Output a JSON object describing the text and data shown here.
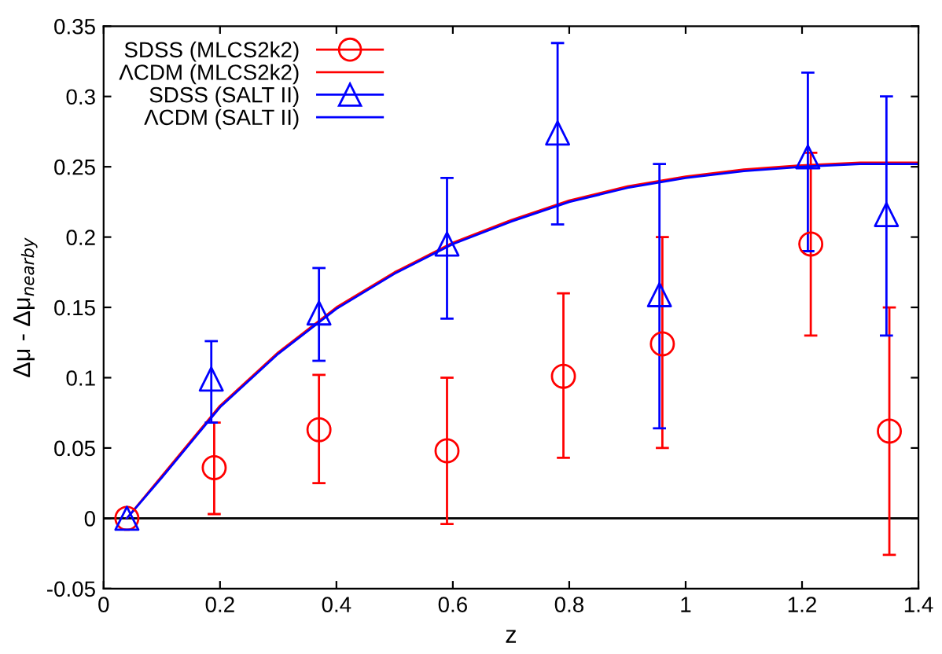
{
  "chart_data": {
    "type": "scatter",
    "xlabel": "z",
    "ylabel": "Δμ - Δμ$_{nearby}$",
    "xlim": [
      0,
      1.4
    ],
    "ylim": [
      -0.05,
      0.35
    ],
    "xticks": [
      0,
      0.2,
      0.4,
      0.6,
      0.8,
      1,
      1.2,
      1.4
    ],
    "yticks": [
      -0.05,
      0,
      0.05,
      0.1,
      0.15,
      0.2,
      0.25,
      0.3,
      0.35
    ],
    "grid": false,
    "legend": "top left",
    "ref_lines": [
      {
        "axis": "y",
        "value": 0,
        "color": "#000000"
      }
    ],
    "series": [
      {
        "name": "SDSS (MLCS2k2)",
        "marker": "circle",
        "color": "#ff0000",
        "x": [
          0.04,
          0.19,
          0.37,
          0.59,
          0.79,
          0.96,
          1.215,
          1.35
        ],
        "values": [
          0,
          0.036,
          0.063,
          0.048,
          0.101,
          0.124,
          0.195,
          0.062
        ],
        "errors": [
          null,
          [
            0.003,
            0.068
          ],
          [
            0.025,
            0.102
          ],
          [
            -0.004,
            0.1
          ],
          [
            0.043,
            0.16
          ],
          [
            0.05,
            0.2
          ],
          [
            0.13,
            0.26
          ],
          [
            -0.026,
            0.15
          ]
        ]
      },
      {
        "name": "ΛCDM (MLCS2k2)",
        "type": "line",
        "marker": "none",
        "color": "#ff0000",
        "x": [
          0.04,
          0.1,
          0.2,
          0.3,
          0.4,
          0.5,
          0.6,
          0.7,
          0.8,
          0.9,
          1.0,
          1.1,
          1.2,
          1.3,
          1.4
        ],
        "values": [
          0,
          0.03,
          0.08,
          0.118,
          0.15,
          0.175,
          0.196,
          0.212,
          0.226,
          0.236,
          0.243,
          0.248,
          0.251,
          0.253,
          0.253
        ]
      },
      {
        "name": "SDSS (SALT II)",
        "marker": "triangle",
        "color": "#0000ff",
        "x": [
          0.04,
          0.185,
          0.37,
          0.59,
          0.78,
          0.955,
          1.21,
          1.345
        ],
        "values": [
          0,
          0.099,
          0.146,
          0.195,
          0.274,
          0.159,
          0.257,
          0.216
        ],
        "errors": [
          null,
          [
            0.068,
            0.126
          ],
          [
            0.112,
            0.178
          ],
          [
            0.142,
            0.242
          ],
          [
            0.209,
            0.338
          ],
          [
            0.064,
            0.252
          ],
          [
            0.19,
            0.317
          ],
          [
            0.13,
            0.3
          ]
        ]
      },
      {
        "name": "ΛCDM (SALT II)",
        "type": "line",
        "marker": "none",
        "color": "#0000ff",
        "x": [
          0.04,
          0.1,
          0.2,
          0.3,
          0.4,
          0.5,
          0.6,
          0.7,
          0.8,
          0.9,
          1.0,
          1.1,
          1.2,
          1.3,
          1.4
        ],
        "values": [
          0,
          0.029,
          0.079,
          0.117,
          0.149,
          0.174,
          0.195,
          0.211,
          0.225,
          0.235,
          0.242,
          0.247,
          0.25,
          0.252,
          0.252
        ]
      }
    ]
  }
}
